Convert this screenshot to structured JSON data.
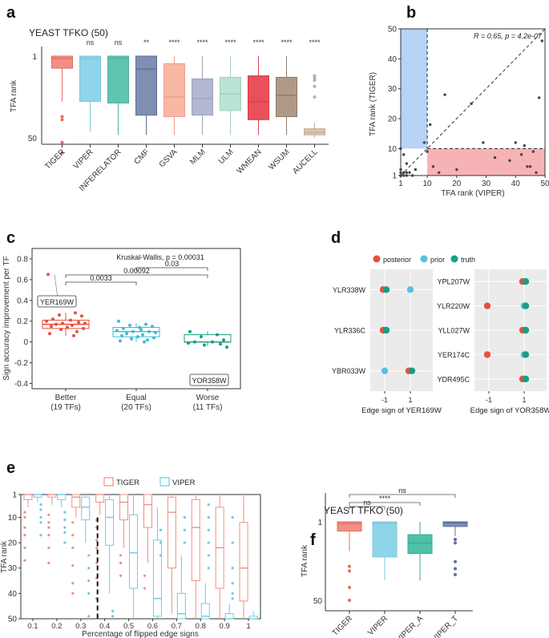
{
  "panels": {
    "a": "a",
    "b": "b",
    "c": "c",
    "d": "d",
    "e": "e",
    "f": "f"
  },
  "chart_data": [
    {
      "id": "a",
      "type": "box",
      "title": "YEAST TFKO (50)",
      "ylabel": "TFA rank",
      "ylim": [
        50,
        1
      ],
      "yticks": [
        "1",
        "50"
      ],
      "categories": [
        "TIGER",
        "VIPER",
        "INFERELATOR",
        "CMF",
        "GSVA",
        "MLM",
        "ULM",
        "WMEAN",
        "WSUM",
        "AUCELL"
      ],
      "significance": [
        "",
        "ns",
        "ns",
        "**",
        "****",
        "****",
        "****",
        "****",
        "****",
        "****"
      ],
      "colors": [
        "#f08f86",
        "#8fd4e8",
        "#5fc4b0",
        "#7f8fb3",
        "#f7b8a6",
        "#b3b7d1",
        "#b9e3d5",
        "#e9505a",
        "#b09a87",
        "#d9c5b0"
      ],
      "outline": [
        "#e86c60",
        "#7bc8df",
        "#4fb09c",
        "#5f6e94",
        "#f2a08a",
        "#9ea2c0",
        "#9fd3c1",
        "#d7404a",
        "#8f7a67",
        "#c4ad93"
      ],
      "boxes": [
        {
          "q1": 0.92,
          "median": 0.985,
          "q3": 1.0,
          "lower": 0.7,
          "upper": 1.0,
          "outliers": [
            0.6,
            0.58,
            0.43,
            0.36
          ]
        },
        {
          "q1": 0.7,
          "median": 0.985,
          "q3": 1.0,
          "lower": 0.5,
          "upper": 1.0,
          "outliers": []
        },
        {
          "q1": 0.69,
          "median": 0.985,
          "q3": 1.0,
          "lower": 0.48,
          "upper": 1.0,
          "outliers": []
        },
        {
          "q1": 0.61,
          "median": 0.915,
          "q3": 1.0,
          "lower": 0.48,
          "upper": 1.0,
          "outliers": []
        },
        {
          "q1": 0.6,
          "median": 0.73,
          "q3": 0.95,
          "lower": 0.48,
          "upper": 1.0,
          "outliers": []
        },
        {
          "q1": 0.61,
          "median": 0.72,
          "q3": 0.85,
          "lower": 0.48,
          "upper": 1.0,
          "outliers": []
        },
        {
          "q1": 0.64,
          "median": 0.75,
          "q3": 0.86,
          "lower": 0.48,
          "upper": 1.0,
          "outliers": []
        },
        {
          "q1": 0.58,
          "median": 0.7,
          "q3": 0.87,
          "lower": 0.48,
          "upper": 1.0,
          "outliers": []
        },
        {
          "q1": 0.6,
          "median": 0.74,
          "q3": 0.86,
          "lower": 0.48,
          "upper": 1.0,
          "outliers": []
        },
        {
          "q1": 0.48,
          "median": 0.495,
          "q3": 0.52,
          "lower": 0.46,
          "upper": 0.56,
          "outliers": [
            0.87,
            0.86,
            0.85,
            0.84,
            0.8,
            0.73
          ]
        }
      ]
    },
    {
      "id": "b",
      "type": "scatter",
      "xlabel": "TFA rank (VIPER)",
      "ylabel": "TFA rank (TIGER)",
      "xlim": [
        1,
        50
      ],
      "ylim": [
        1,
        50
      ],
      "xticks": [
        1,
        10,
        20,
        30,
        40,
        50
      ],
      "yticks": [
        1,
        10,
        20,
        30,
        40,
        50
      ],
      "annotation": "R = 0.65, p = 4.2e-07",
      "threshold": 10,
      "points": [
        [
          1,
          1
        ],
        [
          1,
          2
        ],
        [
          1,
          3
        ],
        [
          2,
          1
        ],
        [
          2,
          2
        ],
        [
          3,
          1
        ],
        [
          3,
          2
        ],
        [
          4,
          2
        ],
        [
          5,
          1
        ],
        [
          6,
          3
        ],
        [
          1,
          10
        ],
        [
          2,
          8
        ],
        [
          3,
          5
        ],
        [
          9,
          12
        ],
        [
          10,
          9
        ],
        [
          11,
          18
        ],
        [
          16,
          28
        ],
        [
          20,
          3
        ],
        [
          25,
          25
        ],
        [
          29,
          12
        ],
        [
          33,
          7
        ],
        [
          38,
          6
        ],
        [
          40,
          12
        ],
        [
          42,
          8
        ],
        [
          43,
          11
        ],
        [
          44,
          4
        ],
        [
          45,
          4
        ],
        [
          46,
          9
        ],
        [
          47,
          2
        ],
        [
          48,
          27
        ],
        [
          49,
          46
        ],
        [
          12,
          4
        ],
        [
          14,
          2
        ]
      ]
    },
    {
      "id": "c",
      "type": "strip-box",
      "ylabel": "Sign accuracy improvement per TF",
      "ylim": [
        -0.45,
        0.9
      ],
      "yticks": [
        -0.4,
        -0.2,
        0.0,
        0.2,
        0.4,
        0.6,
        0.8
      ],
      "categories": [
        "Better\n(19 TFs)",
        "Equal\n(20 TFs)",
        "Worse\n(11 TFs)"
      ],
      "category_lines": [
        [
          "Better",
          "(19 TFs)"
        ],
        [
          "Equal",
          "(20 TFs)"
        ],
        [
          "Worse",
          "(11 TFs)"
        ]
      ],
      "colors": [
        "#e4513e",
        "#3fbcd6",
        "#16a085"
      ],
      "test_label": "Kruskal-Wallis, p = 0.00031",
      "comparisons": [
        {
          "from": 0,
          "to": 2,
          "p": "0.00092"
        },
        {
          "from": 1,
          "to": 2,
          "p": "0.03"
        },
        {
          "from": 0,
          "to": 1,
          "p": "0.0033"
        }
      ],
      "boxes": [
        {
          "q1": 0.13,
          "median": 0.17,
          "q3": 0.21,
          "lower": 0.06,
          "upper": 0.28
        },
        {
          "q1": 0.05,
          "median": 0.1,
          "q3": 0.14,
          "lower": 0.0,
          "upper": 0.18
        },
        {
          "q1": 0.0,
          "median": 0.0,
          "q3": 0.07,
          "lower": -0.04,
          "upper": 0.1
        }
      ],
      "points": [
        [
          0.65,
          0.28,
          0.26,
          0.25,
          0.22,
          0.21,
          0.2,
          0.19,
          0.18,
          0.18,
          0.17,
          0.16,
          0.15,
          0.14,
          0.13,
          0.12,
          0.1,
          0.08,
          0.06
        ],
        [
          0.2,
          0.17,
          0.16,
          0.15,
          0.13,
          0.12,
          0.11,
          0.1,
          0.1,
          0.09,
          0.08,
          0.07,
          0.06,
          0.05,
          0.04,
          0.03,
          0.02,
          0.01,
          0.0,
          0.14
        ],
        [
          0.1,
          0.07,
          0.05,
          0.02,
          0.0,
          0.0,
          -0.01,
          -0.02,
          -0.03,
          -0.05,
          -0.38
        ]
      ],
      "labels": [
        {
          "text": "YER169W",
          "category": 0,
          "value": 0.65
        },
        {
          "text": "YOR358W",
          "category": 2,
          "value": -0.38
        }
      ]
    },
    {
      "id": "d",
      "type": "dot",
      "legend": [
        {
          "label": "posterior",
          "color": "#e4513e"
        },
        {
          "label": "prior",
          "color": "#5bc0de"
        },
        {
          "label": "truth",
          "color": "#16a085"
        }
      ],
      "xticks": [
        "-1",
        "1"
      ],
      "subplots": [
        {
          "xlabel": "Edge sign of YER169W",
          "genes": [
            "YLR338W",
            "YLR336C",
            "YBR033W"
          ],
          "values": [
            {
              "posterior": -1,
              "prior": 1,
              "truth": -1
            },
            {
              "posterior": -1,
              "prior": -1,
              "truth": -1
            },
            {
              "posterior": 1,
              "prior": -1,
              "truth": 1
            }
          ]
        },
        {
          "xlabel": "Edge sign of YOR358W",
          "genes": [
            "YPL207W",
            "YLR220W",
            "YLL027W",
            "YER174C",
            "YDR495C"
          ],
          "values": [
            {
              "posterior": 1,
              "prior": 1,
              "truth": 1
            },
            {
              "posterior": -1,
              "prior": 1,
              "truth": 1
            },
            {
              "posterior": 1,
              "prior": 1,
              "truth": 1
            },
            {
              "posterior": -1,
              "prior": 1,
              "truth": 1
            },
            {
              "posterior": 1,
              "prior": 1,
              "truth": 1
            }
          ]
        }
      ]
    },
    {
      "id": "e",
      "type": "box",
      "xlabel": "Percentage of flipped edge signs",
      "ylabel": "TFA rank",
      "ylim": [
        50,
        1
      ],
      "yticks": [
        1,
        10,
        20,
        30,
        40,
        50
      ],
      "categories": [
        "0.1",
        "0.2",
        "0.3",
        "0.4",
        "0.5",
        "0.6",
        "0.7",
        "0.8",
        "0.9",
        "1"
      ],
      "legend": [
        {
          "label": "TIGER",
          "color": "#f08f86"
        },
        {
          "label": "VIPER",
          "color": "#6ccde0"
        }
      ],
      "vline": 0.37,
      "series": [
        {
          "name": "TIGER",
          "color": "#f08f86",
          "boxes": [
            {
              "q1": 1,
              "median": 1,
              "q3": 3,
              "lower": 1,
              "upper": 6,
              "outliers": [
                8,
                10,
                14,
                17,
                22,
                27
              ]
            },
            {
              "q1": 1,
              "median": 1,
              "q3": 2,
              "lower": 1,
              "upper": 5,
              "outliers": [
                9,
                12,
                14,
                17,
                22,
                28
              ]
            },
            {
              "q1": 1,
              "median": 2,
              "q3": 6,
              "lower": 1,
              "upper": 10,
              "outliers": [
                12,
                17,
                22,
                29,
                36,
                40
              ]
            },
            {
              "q1": 1,
              "median": 1,
              "q3": 4,
              "lower": 1,
              "upper": 9,
              "outliers": [
                11,
                14,
                19,
                22,
                28,
                34,
                42
              ]
            },
            {
              "q1": 1,
              "median": 4,
              "q3": 11,
              "lower": 1,
              "upper": 22,
              "outliers": [
                25,
                28,
                33
              ]
            },
            {
              "q1": 1,
              "median": 5,
              "q3": 14,
              "lower": 1,
              "upper": 28,
              "outliers": [
                33,
                38
              ]
            },
            {
              "q1": 2,
              "median": 8,
              "q3": 30,
              "lower": 1,
              "upper": 48,
              "outliers": []
            },
            {
              "q1": 3,
              "median": 14,
              "q3": 35,
              "lower": 1,
              "upper": 50,
              "outliers": []
            },
            {
              "q1": 6,
              "median": 22,
              "q3": 38,
              "lower": 1,
              "upper": 50,
              "outliers": []
            },
            {
              "q1": 12,
              "median": 30,
              "q3": 43,
              "lower": 1,
              "upper": 50,
              "outliers": []
            }
          ]
        },
        {
          "name": "VIPER",
          "color": "#6ccde0",
          "boxes": [
            {
              "q1": 1,
              "median": 1,
              "q3": 2,
              "lower": 1,
              "upper": 4,
              "outliers": [
                5,
                7,
                10,
                12,
                17
              ]
            },
            {
              "q1": 1,
              "median": 1,
              "q3": 3,
              "lower": 1,
              "upper": 6,
              "outliers": [
                8,
                11,
                14,
                16,
                20
              ]
            },
            {
              "q1": 2,
              "median": 6,
              "q3": 11,
              "lower": 1,
              "upper": 20,
              "outliers": [
                25,
                30,
                35,
                40,
                49
              ]
            },
            {
              "q1": 3,
              "median": 10,
              "q3": 21,
              "lower": 1,
              "upper": 40,
              "outliers": [
                47,
                49
              ]
            },
            {
              "q1": 9,
              "median": 24,
              "q3": 38,
              "lower": 1,
              "upper": 50,
              "outliers": []
            },
            {
              "q1": 19,
              "median": 42,
              "q3": 49,
              "lower": 6,
              "upper": 50,
              "outliers": [
                15,
                20,
                25
              ]
            },
            {
              "q1": 40,
              "median": 48,
              "q3": 50,
              "lower": 25,
              "upper": 50,
              "outliers": [
                10,
                15,
                20
              ]
            },
            {
              "q1": 44,
              "median": 49,
              "q3": 50,
              "lower": 36,
              "upper": 50,
              "outliers": [
                5,
                10,
                15,
                20,
                25,
                30
              ]
            },
            {
              "q1": 48,
              "median": 50,
              "q3": 50,
              "lower": 44,
              "upper": 50,
              "outliers": [
                10,
                20,
                30,
                36,
                40,
                42
              ]
            },
            {
              "q1": 49,
              "median": 50,
              "q3": 50,
              "lower": 47,
              "upper": 50,
              "outliers": []
            }
          ]
        }
      ]
    },
    {
      "id": "f",
      "type": "box",
      "title": "YEAST TFKO (50)",
      "ylabel": "TFA rank",
      "ylim": [
        50,
        1
      ],
      "yticks": [
        "1",
        "50"
      ],
      "categories": [
        "TIGER",
        "VIPER",
        "VIPER_A",
        "VIPER_T"
      ],
      "colors": [
        "#f08f86",
        "#8fd4e8",
        "#4fc1a6",
        "#7f8fb9"
      ],
      "outline": [
        "#e86c60",
        "#7bc8df",
        "#3aa98f",
        "#5f6e98"
      ],
      "comparisons": [
        {
          "from": 0,
          "to": 1,
          "label": "ns"
        },
        {
          "from": 0,
          "to": 2,
          "label": "****"
        },
        {
          "from": 0,
          "to": 3,
          "label": "ns"
        }
      ],
      "boxes": [
        {
          "q1": 0.92,
          "median": 0.985,
          "q3": 1.0,
          "lower": 0.75,
          "upper": 1.0,
          "outliers": [
            0.62,
            0.58,
            0.44,
            0.33
          ]
        },
        {
          "q1": 0.7,
          "median": 0.985,
          "q3": 1.0,
          "lower": 0.5,
          "upper": 1.0,
          "outliers": []
        },
        {
          "q1": 0.73,
          "median": 0.82,
          "q3": 0.89,
          "lower": 0.5,
          "upper": 1.0,
          "outliers": []
        },
        {
          "q1": 0.96,
          "median": 0.99,
          "q3": 1.0,
          "lower": 0.88,
          "upper": 1.0,
          "outliers": [
            0.85,
            0.82,
            0.66,
            0.6,
            0.55
          ]
        }
      ]
    }
  ]
}
